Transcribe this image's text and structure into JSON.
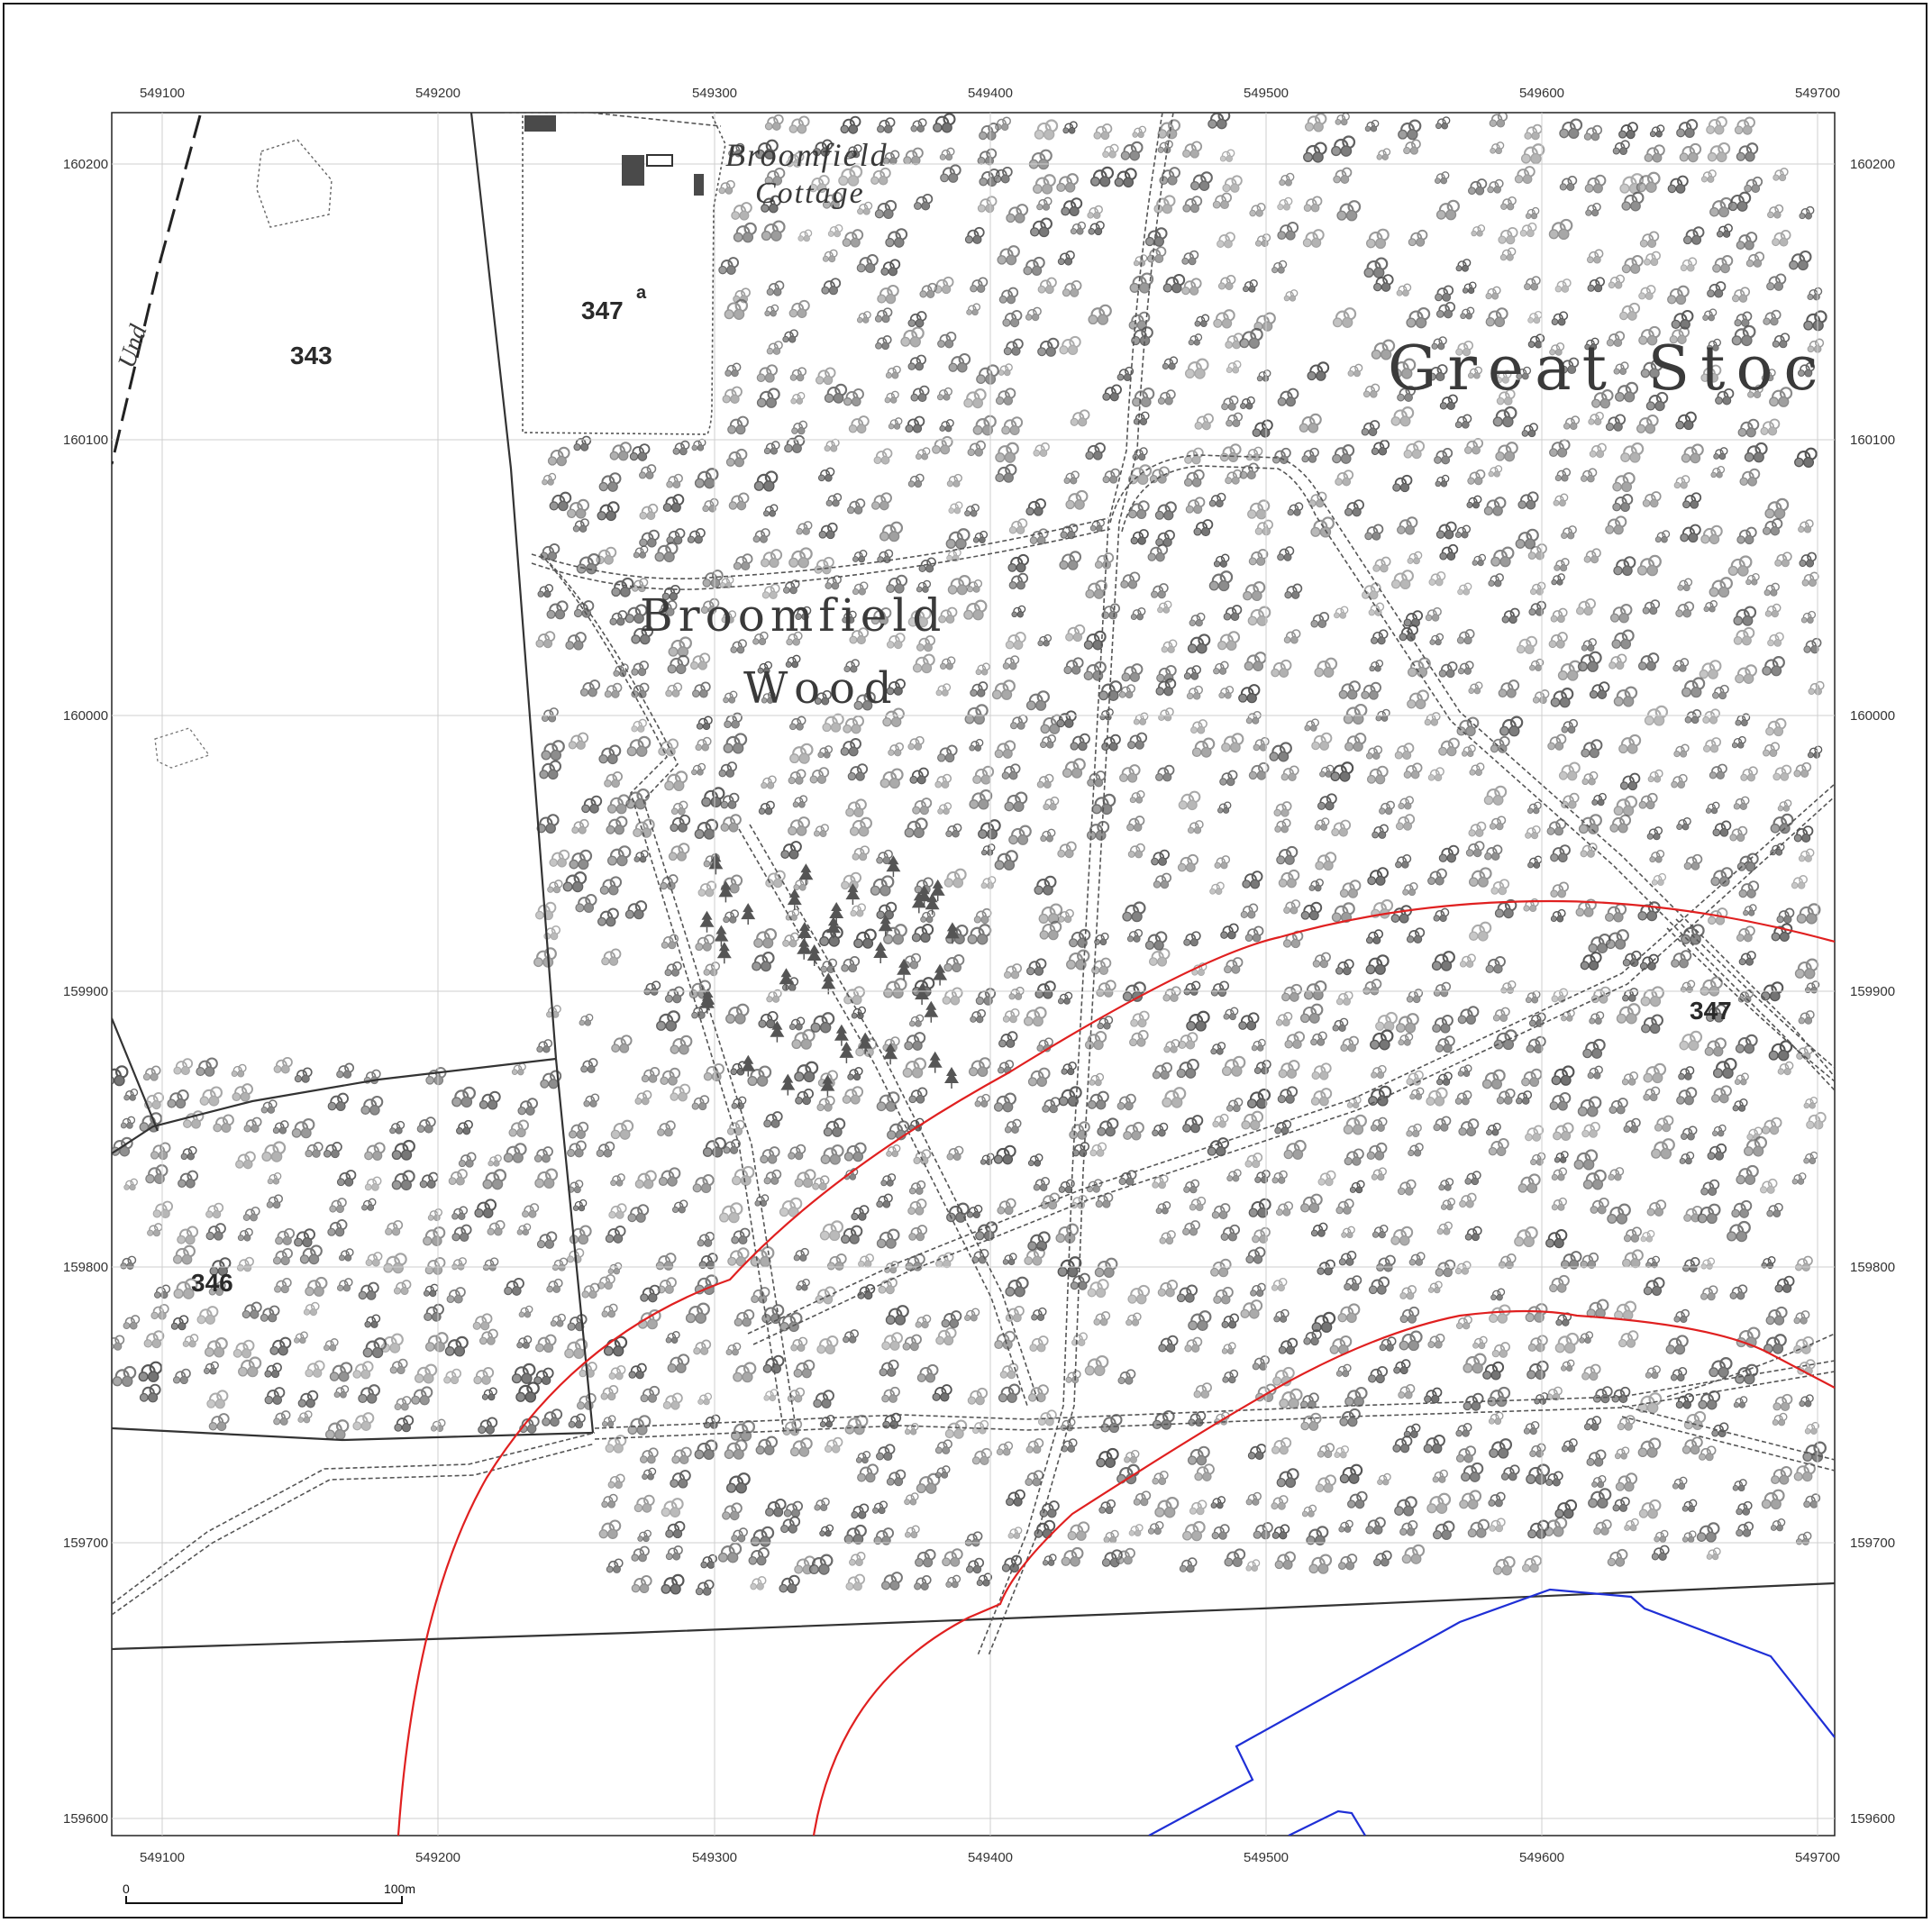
{
  "map": {
    "grid": {
      "easting_labels": [
        "549100",
        "549200",
        "549300",
        "549400",
        "549500",
        "549600",
        "549700"
      ],
      "northing_labels": [
        "160200",
        "160100",
        "160000",
        "159900",
        "159800",
        "159700",
        "159600"
      ]
    },
    "labels": {
      "parcel_343": "343",
      "parcel_347a": "347",
      "parcel_347a_sup": "a",
      "parcel_347": "347",
      "parcel_346": "346",
      "cottage_line1": "Broomfield",
      "cottage_line2": "Cottage",
      "wood_line1": "Broomfield",
      "wood_line2": "Wood",
      "great_stoc": "Great Stoc",
      "und": "Und"
    },
    "scale_bar": {
      "start": "0",
      "end": "100m"
    },
    "colors": {
      "red_line": "#e02020",
      "blue_line": "#1f2fd6",
      "grid": "#cfcfcf",
      "boundary": "#333333"
    }
  }
}
